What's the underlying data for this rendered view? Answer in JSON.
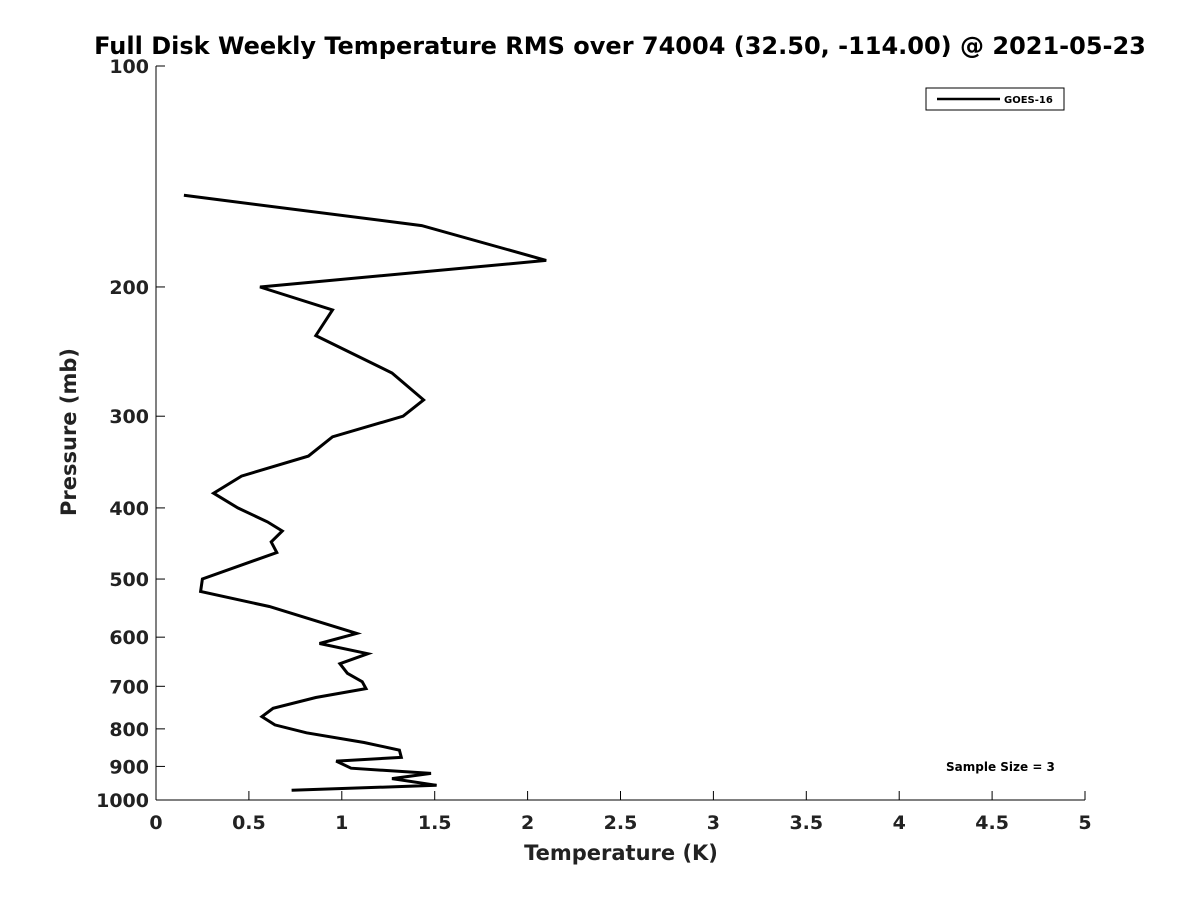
{
  "chart_data": {
    "type": "line",
    "title": "Full Disk Weekly Temperature RMS over 74004 (32.50, -114.00) @ 2021-05-23",
    "xlabel": "Temperature (K)",
    "ylabel": "Pressure (mb)",
    "xlim": [
      0,
      5
    ],
    "ylim": [
      1000,
      100
    ],
    "yscale": "log",
    "xticks": [
      0,
      0.5,
      1,
      1.5,
      2,
      2.5,
      3,
      3.5,
      4,
      4.5,
      5
    ],
    "xtick_labels": [
      "0",
      "0.5",
      "1",
      "1.5",
      "2",
      "2.5",
      "3",
      "3.5",
      "4",
      "4.5",
      "5"
    ],
    "yticks": [
      100,
      200,
      300,
      400,
      500,
      600,
      700,
      800,
      900,
      1000
    ],
    "ytick_labels": [
      "100",
      "200",
      "300",
      "400",
      "500",
      "600",
      "700",
      "800",
      "900",
      "1000"
    ],
    "legend_position": "top-right",
    "grid": false,
    "annotation": "Sample Size = 3",
    "series": [
      {
        "name": "GOES-16",
        "color": "#000000",
        "x": [
          0.15,
          1.43,
          2.1,
          0.56,
          0.95,
          0.86,
          1.27,
          1.44,
          1.33,
          0.95,
          0.82,
          0.46,
          0.31,
          0.44,
          0.6,
          0.68,
          0.62,
          0.65,
          0.25,
          0.24,
          0.61,
          0.86,
          1.08,
          0.88,
          1.14,
          0.99,
          1.03,
          1.11,
          1.13,
          0.86,
          0.63,
          0.57,
          0.64,
          0.81,
          1.12,
          1.31,
          1.32,
          0.97,
          1.05,
          1.48,
          1.27,
          1.51,
          0.73
        ],
        "y": [
          150,
          165,
          184,
          200,
          215,
          233,
          262,
          285,
          300,
          320,
          340,
          362,
          382,
          400,
          418,
          430,
          445,
          460,
          500,
          520,
          545,
          570,
          593,
          612,
          632,
          652,
          672,
          690,
          705,
          725,
          750,
          770,
          790,
          810,
          835,
          855,
          875,
          885,
          905,
          920,
          935,
          955,
          970
        ]
      }
    ]
  }
}
